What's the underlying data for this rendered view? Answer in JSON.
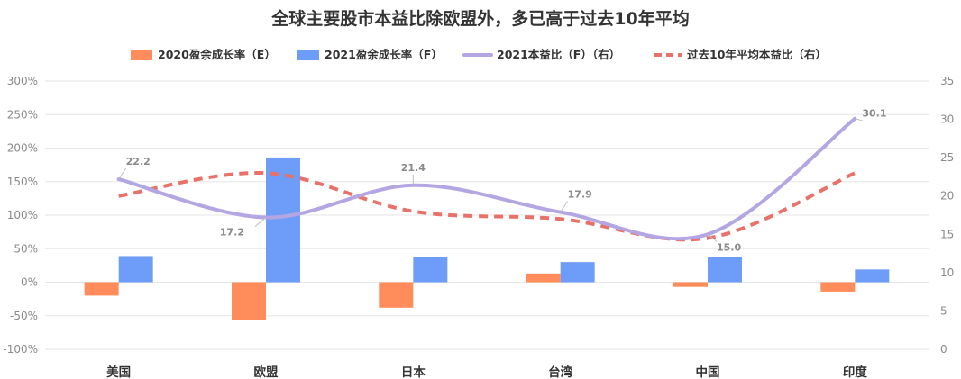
{
  "chart_data": {
    "type": "bar",
    "title": "全球主要股市本益比除欧盟外，多已高于过去10年平均",
    "categories": [
      "美国",
      "欧盟",
      "日本",
      "台湾",
      "中国",
      "印度"
    ],
    "y_left": {
      "ticks": [
        "300%",
        "250%",
        "200%",
        "150%",
        "100%",
        "50%",
        "0%",
        "-50%",
        "-100%"
      ],
      "range": [
        -100,
        300
      ]
    },
    "y_right": {
      "ticks": [
        "35",
        "30",
        "25",
        "20",
        "15",
        "10",
        "5",
        "0"
      ],
      "range": [
        0,
        35
      ]
    },
    "series": [
      {
        "name": "2020盈余成长率（E）",
        "type": "bar",
        "axis": "left",
        "color": "#ff8c5a",
        "values": [
          -20,
          -57,
          -38,
          13,
          -7,
          -14
        ]
      },
      {
        "name": "2021盈余成长率（F）",
        "type": "bar",
        "axis": "left",
        "color": "#6e9cf9",
        "values": [
          39,
          186,
          37,
          30,
          37,
          19
        ]
      },
      {
        "name": "2021本益比（F）（右）",
        "type": "line",
        "axis": "right",
        "color": "#b3a6e3",
        "values": [
          22.2,
          17.2,
          21.4,
          17.9,
          15.0,
          30.1
        ]
      },
      {
        "name": "过去10年平均本益比（右）",
        "type": "line-dashed",
        "axis": "right",
        "color": "#e8716a",
        "values": [
          20.0,
          23.0,
          18.0,
          17.0,
          14.5,
          23.0
        ]
      }
    ],
    "data_labels": [
      "22.2",
      "17.2",
      "21.4",
      "17.9",
      "15.0",
      "30.1"
    ],
    "legend_position": "top",
    "grid": true
  }
}
